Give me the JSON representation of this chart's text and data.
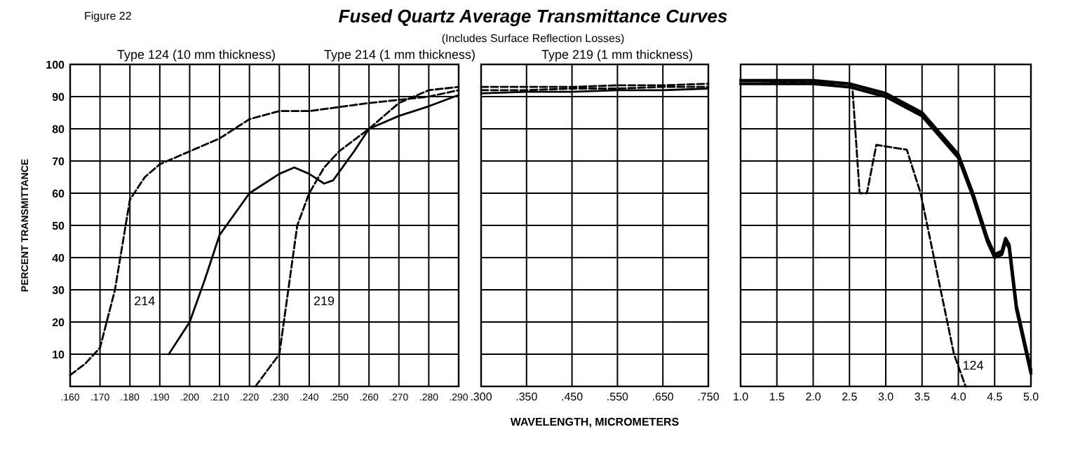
{
  "chart_data": [
    {
      "type": "line",
      "ylabel": "PERCENT TRANSMITTANCE",
      "annotations": [
        "Figure 22",
        "Type 124 (10 mm thickness)",
        "Type 214 (1 mm thickness)",
        "Type 219 (1 mm thickness)"
      ],
      "xlim": [
        0.16,
        0.29
      ],
      "xticks": [
        {
          "value": 0.16,
          "label": ".160"
        },
        {
          "value": 0.17,
          "label": ".170"
        },
        {
          "value": 0.18,
          "label": ".180"
        },
        {
          "value": 0.19,
          "label": ".190"
        },
        {
          "value": 0.2,
          "label": ".200"
        },
        {
          "value": 0.21,
          "label": ".210"
        },
        {
          "value": 0.22,
          "label": ".220"
        },
        {
          "value": 0.23,
          "label": ".230"
        },
        {
          "value": 0.24,
          "label": ".240"
        },
        {
          "value": 0.25,
          "label": ".250"
        },
        {
          "value": 0.26,
          "label": ".260"
        },
        {
          "value": 0.27,
          "label": ".270"
        },
        {
          "value": 0.28,
          "label": ".280"
        },
        {
          "value": 0.29,
          "label": ".290"
        }
      ],
      "ylim": [
        0,
        100
      ],
      "yticks": [
        {
          "value": 0,
          "label": null
        },
        10,
        20,
        30,
        40,
        50,
        60,
        70,
        80,
        90,
        100
      ],
      "grid": true,
      "series": [
        {
          "name": "214",
          "color": "#000000",
          "line_style": "dashed",
          "x": [
            0.16,
            0.165,
            0.17,
            0.175,
            0.18,
            0.185,
            0.19,
            0.2,
            0.21,
            0.22,
            0.23,
            0.24,
            0.26,
            0.28,
            0.29
          ],
          "values": [
            3.5,
            7,
            12,
            30,
            58,
            65,
            69,
            73,
            77,
            83,
            85.5,
            85.5,
            88,
            90,
            92
          ]
        },
        {
          "color": "#000000",
          "line_style": "solid",
          "x": [
            0.193,
            0.2,
            0.205,
            0.21,
            0.22,
            0.23,
            0.235,
            0.24,
            0.245,
            0.248,
            0.255,
            0.26,
            0.27,
            0.28,
            0.29
          ],
          "values": [
            10,
            20,
            33,
            47,
            60,
            66,
            68,
            66,
            63,
            64,
            73,
            80,
            84,
            87,
            90.5
          ]
        },
        {
          "name": "219",
          "color": "#000000",
          "line_style": "dashed",
          "x": [
            0.222,
            0.226,
            0.23,
            0.233,
            0.236,
            0.24,
            0.245,
            0.25,
            0.26,
            0.27,
            0.28,
            0.29
          ],
          "values": [
            0,
            5,
            10,
            30,
            50,
            60,
            68,
            73,
            80,
            88,
            92,
            93
          ]
        }
      ]
    },
    {
      "type": "line",
      "title": "Fused Quartz Average Transmittance Curves",
      "subtitle": "(Includes Surface Reflection Losses)",
      "xlabel": "WAVELENGTH, MICROMETERS",
      "categories": [
        ".300",
        ".350",
        ".450",
        ".550",
        ".650",
        ".750"
      ],
      "ylim": [
        0,
        100
      ],
      "yticks": [
        0,
        10,
        20,
        30,
        40,
        50,
        60,
        70,
        80,
        90,
        100
      ],
      "grid": true,
      "tick_labels": "x",
      "series": [
        {
          "color": "#000000",
          "line_style": "dashed",
          "values": [
            92,
            92,
            92.5,
            92.5,
            93,
            93
          ]
        },
        {
          "color": "#000000",
          "line_style": "solid",
          "values": [
            91,
            91.5,
            91.5,
            92,
            92,
            92.5
          ]
        },
        {
          "color": "#000000",
          "line_style": "dashed",
          "values": [
            93,
            93,
            93,
            93.5,
            93.5,
            94
          ]
        }
      ]
    },
    {
      "type": "line",
      "xlim": [
        1,
        5
      ],
      "xticks": [
        {
          "value": 1,
          "label": "1.0"
        },
        {
          "value": 1.5,
          "label": "1.5"
        },
        {
          "value": 2,
          "label": "2.0"
        },
        {
          "value": 2.5,
          "label": "2.5"
        },
        {
          "value": 3,
          "label": "3.0"
        },
        {
          "value": 3.5,
          "label": "3.5"
        },
        {
          "value": 4,
          "label": "4.0"
        },
        {
          "value": 4.5,
          "label": "4.5"
        },
        {
          "value": 5,
          "label": "5.0"
        }
      ],
      "ylim": [
        0,
        100
      ],
      "yticks": [
        0,
        10,
        20,
        30,
        40,
        50,
        60,
        70,
        80,
        90,
        100
      ],
      "grid": true,
      "tick_labels": "x",
      "series": [
        {
          "color": "#000000",
          "line_style": "solid",
          "x": [
            1,
            2,
            2.5,
            3,
            3.5,
            4,
            4.2,
            4.4,
            4.5,
            4.6,
            4.65,
            4.7,
            4.8,
            5
          ],
          "values": [
            94,
            94,
            93,
            90,
            84,
            71,
            59,
            45,
            40,
            41,
            45,
            43,
            24,
            4
          ]
        },
        {
          "name": "124",
          "color": "#000000",
          "line_style": "dashed",
          "x": [
            1,
            2.5,
            2.54,
            2.64,
            2.74,
            2.87,
            3.29,
            3.48,
            3.94,
            4.1
          ],
          "values": [
            95,
            94,
            93,
            60,
            60,
            75,
            73.5,
            60,
            10,
            0
          ]
        },
        {
          "color": "#000000",
          "line_style": "solid",
          "x": [
            1,
            2,
            2.5,
            3,
            3.5,
            4,
            4.2,
            4.4,
            4.5,
            4.6,
            4.65,
            4.7,
            4.8,
            5
          ],
          "values": [
            95,
            95,
            94,
            91,
            85,
            72,
            60,
            46,
            41,
            42,
            46,
            44,
            25,
            5
          ]
        }
      ]
    }
  ]
}
